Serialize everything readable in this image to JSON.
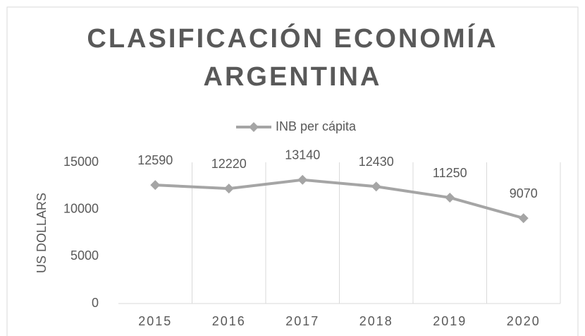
{
  "chart_data": {
    "type": "line",
    "title": "CLASIFICACIÓN ECONOMÍA ARGENTINA",
    "categories": [
      "2015",
      "2016",
      "2017",
      "2018",
      "2019",
      "2020"
    ],
    "series": [
      {
        "name": "INB per cápita",
        "color": "#a5a5a5",
        "values": [
          12590,
          12220,
          13140,
          12430,
          11250,
          9070
        ]
      }
    ],
    "ylabel": "US DOLLARS",
    "ylim": [
      0,
      15000
    ],
    "yticks": [
      0,
      5000,
      10000,
      15000
    ],
    "legend": "top",
    "data_labels": true
  }
}
